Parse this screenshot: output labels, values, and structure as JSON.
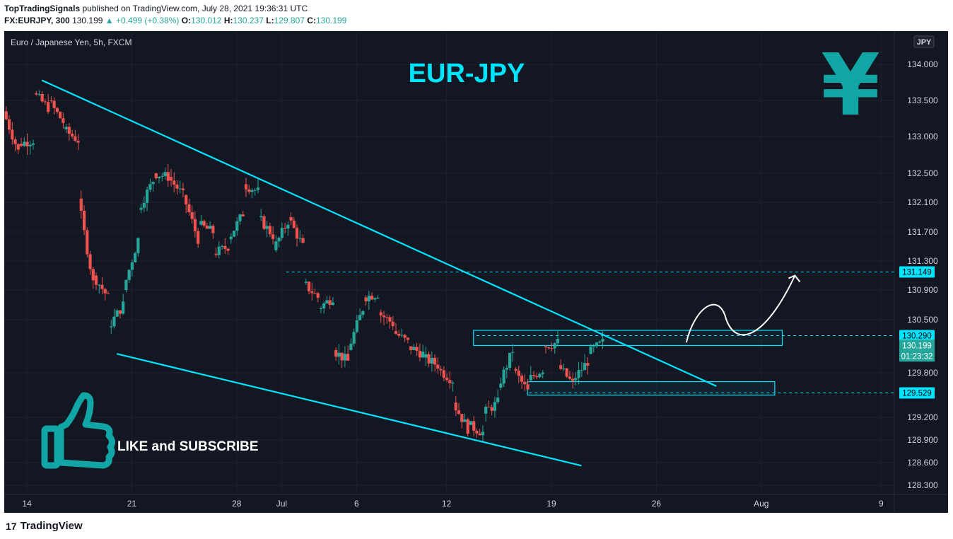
{
  "header": {
    "author": "TopTradingSignals",
    "published": "published on TradingView.com, July 28, 2021 19:36:31 UTC",
    "symbol": "FX:EURJPY, 300",
    "last": "130.199",
    "change": "▲ +0.499 (+0.38%)",
    "o_label": "O:",
    "o_val": "130.012",
    "h_label": "H:",
    "h_val": "130.237",
    "l_label": "L:",
    "l_val": "129.807",
    "c_label": "C:",
    "c_val": "130.199"
  },
  "legend": "Euro / Japanese Yen, 5h, FXCM",
  "currency_badge": "JPY",
  "overlay_title": "EUR-JPY",
  "yen_symbol": "¥",
  "like_text": "LIKE and SUBSCRIBE",
  "footer": {
    "brand": "TradingView",
    "mark": "17"
  },
  "colors": {
    "background": "#131722",
    "up": "#26a69a",
    "down": "#ef5350",
    "accent": "#00e5ff",
    "teal": "#12a5a5",
    "price_tag": "#26a69a"
  },
  "chart_data": {
    "type": "candlestick",
    "title": "Euro / Japanese Yen, 5h, FXCM",
    "y_ticks": [
      "134.000",
      "133.500",
      "133.000",
      "132.500",
      "132.100",
      "131.700",
      "131.300",
      "130.900",
      "130.500",
      "129.800",
      "129.200",
      "128.900",
      "128.600",
      "128.300"
    ],
    "x_ticks": [
      "14",
      "21",
      "28",
      "Jul",
      "6",
      "12",
      "19",
      "26",
      "Aug",
      "9"
    ],
    "price_labels": [
      {
        "text": "131.149",
        "value": 131.149,
        "kind": "level"
      },
      {
        "text": "130.290",
        "value": 130.29,
        "kind": "level"
      },
      {
        "text": "130.199",
        "value": 130.199,
        "kind": "last"
      },
      {
        "text": "01:23:32",
        "value": 130.199,
        "kind": "countdown"
      },
      {
        "text": "129.529",
        "value": 129.529,
        "kind": "level"
      }
    ],
    "levels": [
      131.149,
      130.29,
      129.529
    ],
    "zones": [
      [
        130.16,
        130.36
      ],
      [
        129.5,
        129.68
      ]
    ],
    "trendlines": [
      {
        "name": "upper",
        "from": [
          "Jun 15",
          133.78
        ],
        "to": [
          "Jul 30",
          129.62
        ]
      },
      {
        "name": "lower",
        "from": [
          "Jun 20",
          130.05
        ],
        "to": [
          "Jul 21",
          128.56
        ]
      }
    ],
    "projection": [
      [
        "Jul 28",
        130.2
      ],
      [
        "Jul 29",
        130.7
      ],
      [
        "Jul 29",
        130.35
      ],
      [
        "Jul 30",
        130.45
      ],
      [
        "Jul 31",
        131.1
      ]
    ],
    "path": [
      [
        13,
        133.35,
        132.8
      ],
      [
        14,
        132.9,
        132.95
      ],
      [
        15,
        133.6,
        133.4
      ],
      [
        16,
        133.5,
        133.2
      ],
      [
        17,
        133.1,
        132.95
      ],
      [
        18,
        132.15,
        131.0
      ],
      [
        19,
        131.1,
        130.8
      ],
      [
        20,
        130.4,
        130.7
      ],
      [
        21,
        130.9,
        131.6
      ],
      [
        22,
        132.0,
        132.4
      ],
      [
        23,
        132.5,
        132.45
      ],
      [
        24,
        132.45,
        132.2
      ],
      [
        25,
        132.2,
        131.6
      ],
      [
        26,
        131.8,
        131.7
      ],
      [
        27,
        131.4,
        131.5
      ],
      [
        28,
        131.6,
        131.95
      ],
      [
        29,
        132.35,
        132.25
      ],
      [
        30,
        131.9,
        131.65
      ],
      [
        31,
        131.45,
        131.85
      ],
      [
        32,
        131.9,
        131.5
      ],
      [
        33,
        131.0,
        130.8
      ],
      [
        34,
        130.65,
        130.8
      ],
      [
        35,
        130.1,
        129.95
      ],
      [
        36,
        130.1,
        130.65
      ],
      [
        37,
        130.8,
        130.85
      ],
      [
        38,
        130.6,
        130.45
      ],
      [
        39,
        130.35,
        130.2
      ],
      [
        40,
        130.15,
        130.05
      ],
      [
        41,
        130.0,
        129.9
      ],
      [
        42,
        129.85,
        129.7
      ],
      [
        43,
        129.4,
        129.05
      ],
      [
        44,
        129.1,
        129.0
      ],
      [
        45,
        129.25,
        129.4
      ],
      [
        46,
        129.6,
        130.1
      ],
      [
        47,
        129.85,
        129.55
      ],
      [
        48,
        129.7,
        129.85
      ],
      [
        49,
        130.15,
        130.2
      ],
      [
        50,
        129.9,
        129.65
      ],
      [
        51,
        129.7,
        129.95
      ],
      [
        52,
        130.05,
        130.2
      ]
    ]
  }
}
